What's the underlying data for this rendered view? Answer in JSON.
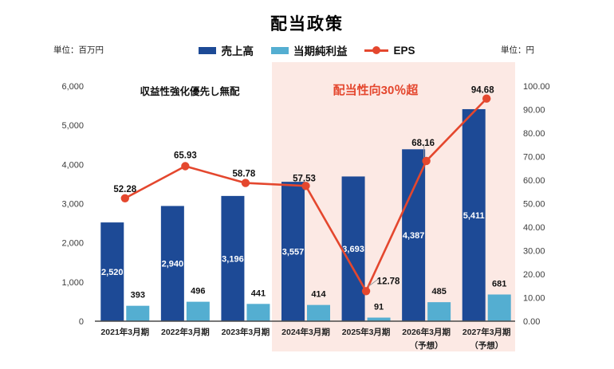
{
  "header": {
    "title": "配当政策"
  },
  "units": {
    "left": "単位：百万円",
    "right": "単位：円"
  },
  "legend": {
    "items": [
      {
        "label": "売上高",
        "color": "#1d4a96",
        "type": "bar"
      },
      {
        "label": "当期純利益",
        "color": "#54aed1",
        "type": "bar"
      },
      {
        "label": "EPS",
        "color": "#e4472e",
        "type": "line"
      }
    ]
  },
  "annotations": {
    "no_dividend": "収益性強化優先し無配",
    "payout_ratio": "配当性向30％超"
  },
  "colors": {
    "revenue_bar": "#1d4a96",
    "net_income_bar": "#54aed1",
    "eps_line": "#e4472e",
    "highlight_bg": "#fce9e4",
    "axis_text": "#3c3c3c",
    "axis_line": "#4a4a4a",
    "leader_line": "#9b9b9b",
    "bar_label_inside": "#ffffff",
    "bar_label_outside": "#111111"
  },
  "chart_data": {
    "type": "bar+line",
    "title": "配当政策",
    "grid": false,
    "legend_position": "top",
    "categories": [
      {
        "label": "2021年3月期",
        "note": ""
      },
      {
        "label": "2022年3月期",
        "note": ""
      },
      {
        "label": "2023年3月期",
        "note": ""
      },
      {
        "label": "2024年3月期",
        "note": ""
      },
      {
        "label": "2025年3月期",
        "note": ""
      },
      {
        "label": "2026年3月期",
        "note": "（予想）"
      },
      {
        "label": "2027年3月期",
        "note": "（予想）"
      }
    ],
    "series": [
      {
        "name": "売上高",
        "type": "bar",
        "axis": "left",
        "values": [
          2520,
          2940,
          3196,
          3557,
          3693,
          4387,
          5411
        ]
      },
      {
        "name": "当期純利益",
        "type": "bar",
        "axis": "left",
        "values": [
          393,
          496,
          441,
          414,
          91,
          485,
          681
        ]
      },
      {
        "name": "EPS",
        "type": "line",
        "axis": "right",
        "values": [
          52.28,
          65.93,
          58.78,
          57.53,
          12.78,
          68.16,
          94.68
        ]
      }
    ],
    "left_axis": {
      "unit": "百万円",
      "min": 0,
      "max": 6000,
      "step": 1000
    },
    "right_axis": {
      "unit": "円",
      "min": 0,
      "max": 100,
      "step": 10
    },
    "highlight": {
      "start_category": "2024年3月期",
      "start_index": 3,
      "label": "配当性向30％超"
    }
  }
}
